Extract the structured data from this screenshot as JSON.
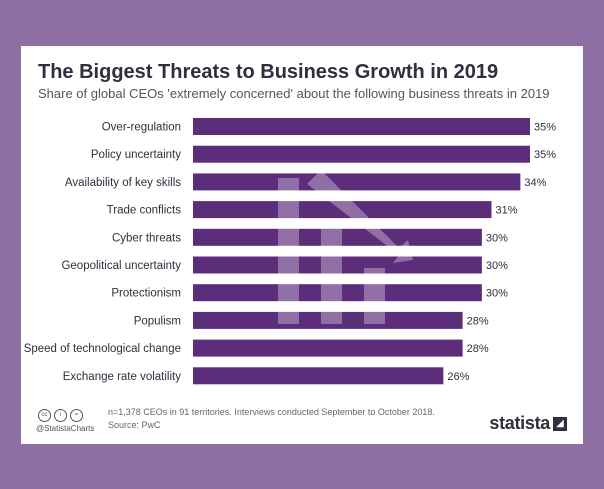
{
  "chart_data": {
    "type": "bar",
    "orientation": "horizontal",
    "title": "The Biggest Threats to Business Growth in 2019",
    "subtitle": "Share of global CEOs 'extremely concerned' about the following business threats in 2019",
    "categories": [
      "Over-regulation",
      "Policy uncertainty",
      "Availability of key skills",
      "Trade conflicts",
      "Cyber threats",
      "Geopolitical uncertainty",
      "Protectionism",
      "Populism",
      "Speed of technological change",
      "Exchange rate volatility"
    ],
    "values": [
      35,
      35,
      34,
      31,
      30,
      30,
      30,
      28,
      28,
      26
    ],
    "value_suffix": "%",
    "xlim": [
      0,
      35
    ],
    "bar_color": "#5c2d7a"
  },
  "footer": {
    "note": "n=1,378 CEOs in 91 territories. Interviews conducted September to October 2018.",
    "source": "Source: PwC",
    "handle": "@StatistaCharts",
    "brand": "statista",
    "cc_icons": [
      "cc",
      "i",
      "="
    ]
  },
  "colors": {
    "background": "#8d6fa3",
    "card": "#ffffff",
    "bar": "#5c2d7a",
    "text": "#2f2f3f"
  }
}
